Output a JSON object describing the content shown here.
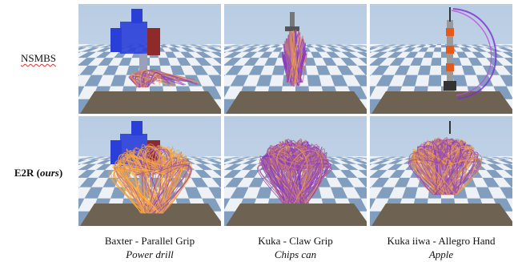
{
  "rows": [
    {
      "label": "NSMBS"
    },
    {
      "label": "E2R",
      "suffix": "ours"
    }
  ],
  "columns": [
    {
      "robot": "Baxter - Parallel Grip",
      "object": "Power drill"
    },
    {
      "robot": "Kuka - Claw Grip",
      "object": "Chips can"
    },
    {
      "robot": "Kuka iiwa - Allegro Hand",
      "object": "Apple"
    }
  ],
  "colors": {
    "sky": "#c9d9ea",
    "floor_light": "#eef2f7",
    "floor_dark": "#6f8fb5",
    "table": "#6e6353",
    "traj_start": "#ffb238",
    "traj_end": "#7a2fd0",
    "baxter_blue": "#2a3fd8",
    "baxter_red": "#8e2a2a"
  }
}
